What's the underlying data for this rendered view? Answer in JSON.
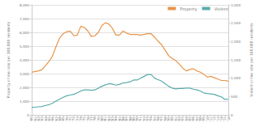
{
  "chart_data": {
    "type": "line",
    "categories": [
      "'60",
      "'61",
      "'62",
      "'63",
      "'64",
      "'65",
      "'66",
      "'67",
      "'68",
      "'69",
      "'70",
      "'71",
      "'72",
      "'73",
      "'74",
      "'75",
      "'76",
      "'77",
      "'78",
      "'79",
      "'80",
      "'81",
      "'82",
      "'83",
      "'84",
      "'85",
      "'86",
      "'87",
      "'88",
      "'89",
      "'90",
      "'91",
      "'92",
      "'93",
      "'94",
      "'95",
      "'96",
      "'97",
      "'98",
      "'99",
      "'00",
      "'01",
      "'02",
      "'03",
      "'04",
      "'05",
      "'06",
      "'07",
      "'08",
      "'09",
      "'10",
      "'11",
      "'12",
      "'13",
      "'14",
      "'15",
      "'16"
    ],
    "series": [
      {
        "name": "Property",
        "color": "#E8944A",
        "values": [
          3100,
          3150,
          3200,
          3300,
          3600,
          3900,
          4300,
          5000,
          5600,
          5900,
          6050,
          6100,
          5750,
          5800,
          6450,
          6350,
          6100,
          5700,
          5750,
          6000,
          6500,
          6700,
          6600,
          6300,
          5800,
          5800,
          6100,
          5950,
          5850,
          5850,
          5850,
          5800,
          5850,
          5900,
          5900,
          5650,
          5350,
          5100,
          4700,
          4300,
          4100,
          3950,
          3700,
          3400,
          3200,
          3300,
          3350,
          3200,
          3100,
          2950,
          2750,
          2800,
          2700,
          2600,
          2500,
          2500,
          2450
        ]
      },
      {
        "name": "Violent",
        "color": "#5AABAA",
        "axis": "y2",
        "values": [
          200,
          210,
          220,
          230,
          260,
          280,
          320,
          380,
          430,
          480,
          520,
          540,
          560,
          600,
          650,
          680,
          680,
          670,
          680,
          730,
          780,
          820,
          850,
          840,
          810,
          830,
          870,
          880,
          900,
          950,
          950,
          1000,
          1050,
          1100,
          1100,
          1000,
          960,
          920,
          850,
          780,
          730,
          710,
          720,
          720,
          730,
          730,
          700,
          680,
          650,
          600,
          580,
          570,
          560,
          520,
          490,
          420,
          430
        ]
      }
    ],
    "y_label": "Property crime rate per 100,000 residents",
    "y2_label": "Violent crime rate per 100,000 residents",
    "ylim": [
      0,
      8000
    ],
    "yticks": [
      0,
      {
        "value": 1000,
        "label": "1,000"
      },
      {
        "value": 2000,
        "label": "2,000"
      },
      {
        "value": 3000,
        "label": "3,000"
      },
      {
        "value": 4000,
        "label": "4,000"
      },
      {
        "value": 5000,
        "label": "5,000"
      },
      {
        "value": 6000,
        "label": "6,000"
      },
      {
        "value": 7000,
        "label": "7,000"
      },
      {
        "value": 8000,
        "label": "8,000"
      }
    ],
    "y2lim": [
      0,
      3000
    ],
    "y2ticks": [
      0,
      500,
      {
        "value": 1000,
        "label": "1,000"
      },
      {
        "value": 1500,
        "label": "1,500"
      },
      {
        "value": 2000,
        "label": "2,000"
      },
      {
        "value": 2500,
        "label": "2,500"
      },
      {
        "value": 3000,
        "label": "3,000"
      }
    ],
    "grid": true,
    "legend": "upper right"
  }
}
